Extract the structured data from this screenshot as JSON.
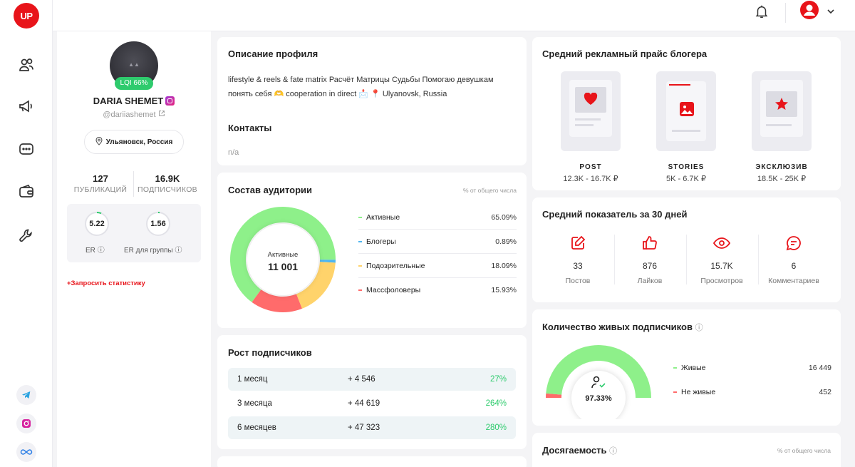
{
  "brand": {
    "logo": "UP",
    "accent": "#e8141a"
  },
  "sidebar": {
    "nav": [
      "users-icon",
      "megaphone-icon",
      "chat-icon",
      "wallet-icon",
      "wrench-icon"
    ],
    "social": [
      "telegram-icon",
      "instagram-icon",
      "infinity-icon"
    ]
  },
  "profile": {
    "lqi": "LQI 66%",
    "name": "DARIA SHEMET",
    "handle": "@dariiashemet",
    "location": "Ульяновск, Россия",
    "posts_count": "127",
    "posts_label": "ПУБЛИКАЦИЙ",
    "followers_count": "16.9K",
    "followers_label": "ПОДПИСЧИКОВ",
    "er_value": "5.22",
    "er_label": "ER",
    "er_group_value": "1.56",
    "er_group_label": "ER для группы",
    "request_stats": "+Запросить статистику"
  },
  "description": {
    "title": "Описание профиля",
    "text": "lifestyle & reels & fate matrix Расчёт Матрицы Судьбы Помогаю девушкам понять себя 🫶 cooperation in direct 📩 📍 Ulyanovsk, Russia",
    "contacts_title": "Контакты",
    "contacts_value": "n/a"
  },
  "audience": {
    "title": "Состав аудитории",
    "subtitle": "% от общего числа",
    "center_label": "Активные",
    "center_value": "11 001",
    "items": [
      {
        "label": "Активные",
        "value": "65.09%",
        "pct": 65.09,
        "color": "#8ef08a"
      },
      {
        "label": "Блогеры",
        "value": "0.89%",
        "pct": 0.89,
        "color": "#4fb6f0"
      },
      {
        "label": "Подозрительные",
        "value": "18.09%",
        "pct": 18.09,
        "color": "#ffd36b"
      },
      {
        "label": "Массфоловеры",
        "value": "15.93%",
        "pct": 15.93,
        "color": "#ff6b6b"
      }
    ]
  },
  "growth": {
    "title": "Рост подписчиков",
    "rows": [
      {
        "period": "1 месяц",
        "count": "+ 4 546",
        "percent": "27%"
      },
      {
        "period": "3 месяца",
        "count": "+ 44 619",
        "percent": "264%"
      },
      {
        "period": "6 месяцев",
        "count": "+ 47 323",
        "percent": "280%"
      }
    ]
  },
  "price": {
    "title": "Средний рекламный прайс блогера",
    "items": [
      {
        "name": "POST",
        "range": "12.3K - 16.7K ₽",
        "icon": "heart-icon"
      },
      {
        "name": "STORIES",
        "range": "5K - 6.7K ₽",
        "icon": "image-icon"
      },
      {
        "name": "ЭКСКЛЮЗИВ",
        "range": "18.5K - 25K ₽",
        "icon": "star-icon"
      }
    ]
  },
  "metrics": {
    "title": "Средний показатель за 30 дней",
    "items": [
      {
        "value": "33",
        "label": "Постов",
        "icon": "edit-icon"
      },
      {
        "value": "876",
        "label": "Лайков",
        "icon": "thumbs-up-icon"
      },
      {
        "value": "15.7K",
        "label": "Просмотров",
        "icon": "eye-icon"
      },
      {
        "value": "6",
        "label": "Комментариев",
        "icon": "comment-icon"
      }
    ]
  },
  "live": {
    "title": "Количество живых подписчиков",
    "percent": "97.33%",
    "percent_value": 97.33,
    "alive_label": "Живые",
    "alive_value": "16 449",
    "dead_label": "Не живые",
    "dead_value": "452"
  },
  "reach": {
    "title": "Досягаемость",
    "subtitle": "% от общего числа"
  }
}
